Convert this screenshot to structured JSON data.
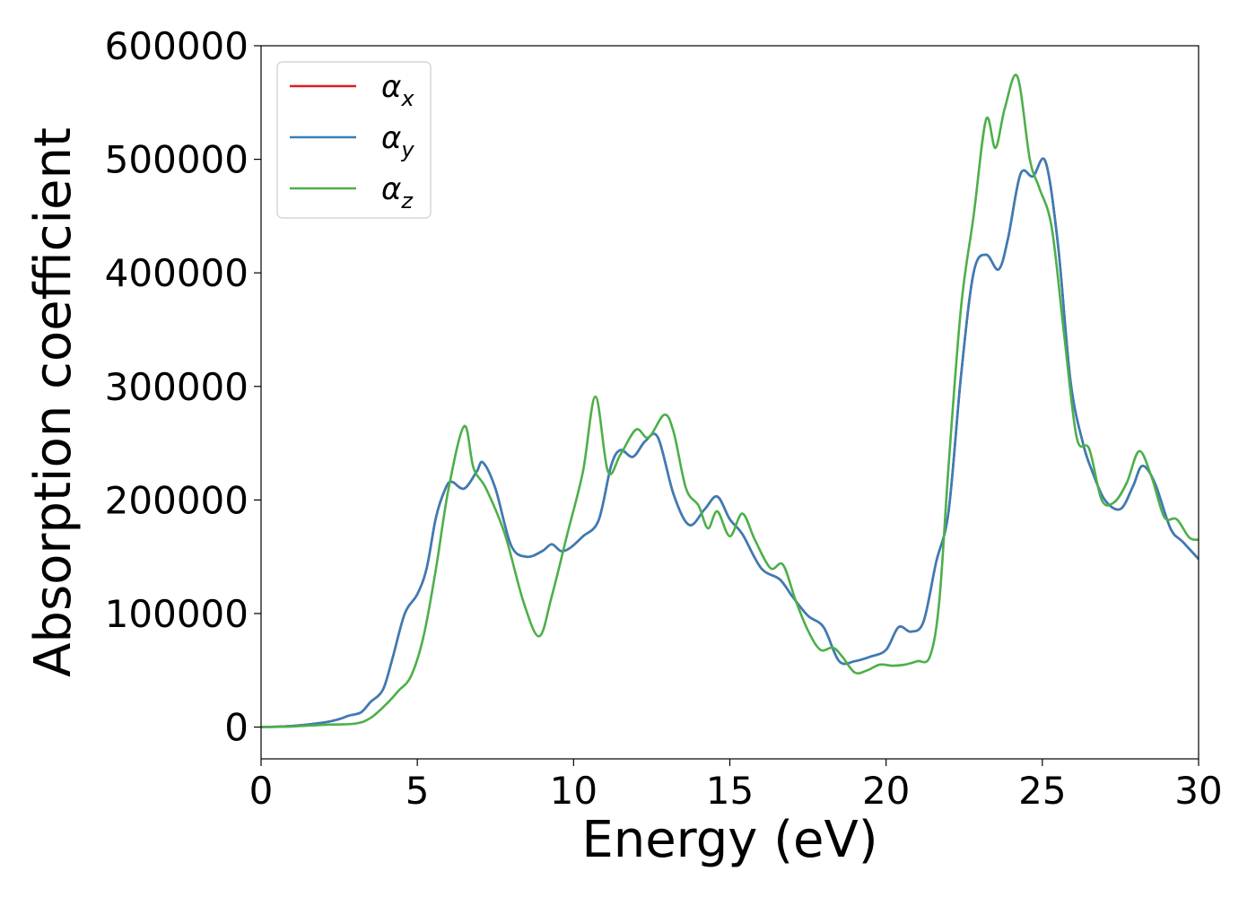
{
  "chart_data": {
    "type": "line",
    "title": "",
    "xlabel": "Energy (eV)",
    "ylabel": "Absorption coefficient",
    "xlim": [
      0,
      30
    ],
    "ylim": [
      -28000,
      600000
    ],
    "xticks": [
      0,
      5,
      10,
      15,
      20,
      25,
      30
    ],
    "yticks": [
      0,
      100000,
      200000,
      300000,
      400000,
      500000,
      600000
    ],
    "xtick_labels": [
      "0",
      "5",
      "10",
      "15",
      "20",
      "25",
      "30"
    ],
    "ytick_labels": [
      "0",
      "100000",
      "200000",
      "300000",
      "400000",
      "500000",
      "600000"
    ],
    "grid": false,
    "legend_position": "top-left",
    "series": [
      {
        "name": "αx",
        "symbol": "α",
        "subscript": "x",
        "color": "#e41a1c",
        "x": [
          0,
          1,
          2,
          2.5,
          2.8,
          3.2,
          3.5,
          3.9,
          4.2,
          4.6,
          5.0,
          5.3,
          5.6,
          5.9,
          6.1,
          6.5,
          6.9,
          7.1,
          7.5,
          8.0,
          8.5,
          9.0,
          9.3,
          9.6,
          9.9,
          10.3,
          10.8,
          11.2,
          11.5,
          11.9,
          12.3,
          12.7,
          13.2,
          13.7,
          14.2,
          14.6,
          15.0,
          15.4,
          16.0,
          16.6,
          17.0,
          17.5,
          18.0,
          18.5,
          19.0,
          19.5,
          20.0,
          20.4,
          20.8,
          21.2,
          21.6,
          22.0,
          22.4,
          22.8,
          23.2,
          23.6,
          23.9,
          24.3,
          24.7,
          25.1,
          25.5,
          25.9,
          26.3,
          26.6,
          27.0,
          27.5,
          27.9,
          28.2,
          28.6,
          29.1,
          29.5,
          30.0
        ],
        "y": [
          0,
          1000,
          4000,
          7000,
          10000,
          13000,
          22000,
          33000,
          60000,
          100000,
          117000,
          140000,
          185000,
          210000,
          216000,
          210000,
          225000,
          233000,
          210000,
          160000,
          150000,
          155000,
          161000,
          155000,
          158000,
          168000,
          182000,
          230000,
          244000,
          238000,
          252000,
          255000,
          205000,
          178000,
          192000,
          203000,
          183000,
          170000,
          140000,
          130000,
          115000,
          98000,
          88000,
          58000,
          58000,
          62000,
          68000,
          88000,
          84000,
          93000,
          145000,
          190000,
          310000,
          400000,
          416000,
          403000,
          430000,
          487000,
          485000,
          498000,
          425000,
          305000,
          250000,
          225000,
          200000,
          192000,
          212000,
          230000,
          215000,
          175000,
          163000,
          148000
        ]
      },
      {
        "name": "αy",
        "symbol": "α",
        "subscript": "y",
        "color": "#377eb8",
        "x": [
          0,
          1,
          2,
          2.5,
          2.8,
          3.2,
          3.5,
          3.9,
          4.2,
          4.6,
          5.0,
          5.3,
          5.6,
          5.9,
          6.1,
          6.5,
          6.9,
          7.1,
          7.5,
          8.0,
          8.5,
          9.0,
          9.3,
          9.6,
          9.9,
          10.3,
          10.8,
          11.2,
          11.5,
          11.9,
          12.3,
          12.7,
          13.2,
          13.7,
          14.2,
          14.6,
          15.0,
          15.4,
          16.0,
          16.6,
          17.0,
          17.5,
          18.0,
          18.5,
          19.0,
          19.5,
          20.0,
          20.4,
          20.8,
          21.2,
          21.6,
          22.0,
          22.4,
          22.8,
          23.2,
          23.6,
          23.9,
          24.3,
          24.7,
          25.1,
          25.5,
          25.9,
          26.3,
          26.6,
          27.0,
          27.5,
          27.9,
          28.2,
          28.6,
          29.1,
          29.5,
          30.0
        ],
        "y": [
          0,
          1000,
          4000,
          7000,
          10000,
          13000,
          22000,
          33000,
          60000,
          100000,
          117000,
          140000,
          185000,
          210000,
          216000,
          210000,
          225000,
          233000,
          210000,
          160000,
          150000,
          155000,
          161000,
          155000,
          158000,
          168000,
          182000,
          230000,
          244000,
          238000,
          252000,
          255000,
          205000,
          178000,
          192000,
          203000,
          183000,
          170000,
          140000,
          130000,
          115000,
          98000,
          88000,
          58000,
          58000,
          62000,
          68000,
          88000,
          84000,
          93000,
          145000,
          190000,
          310000,
          400000,
          416000,
          403000,
          430000,
          487000,
          485000,
          498000,
          425000,
          305000,
          250000,
          225000,
          200000,
          192000,
          212000,
          230000,
          215000,
          175000,
          163000,
          148000
        ]
      },
      {
        "name": "αz",
        "symbol": "α",
        "subscript": "z",
        "color": "#4daf4a",
        "x": [
          0,
          1,
          2,
          3,
          3.5,
          4.0,
          4.4,
          4.8,
          5.2,
          5.6,
          6.0,
          6.5,
          6.8,
          7.2,
          7.8,
          8.4,
          8.9,
          9.3,
          9.8,
          10.3,
          10.7,
          11.1,
          11.5,
          12.0,
          12.4,
          12.9,
          13.2,
          13.6,
          14.0,
          14.3,
          14.6,
          15.0,
          15.4,
          15.8,
          16.3,
          16.7,
          17.1,
          17.5,
          17.9,
          18.3,
          18.6,
          19.0,
          19.4,
          19.8,
          20.2,
          20.6,
          21.0,
          21.4,
          21.7,
          22.0,
          22.4,
          22.8,
          23.2,
          23.5,
          23.8,
          24.2,
          24.6,
          24.9,
          25.3,
          25.7,
          26.1,
          26.5,
          26.9,
          27.3,
          27.7,
          28.1,
          28.5,
          28.9,
          29.3,
          29.7,
          30.0
        ],
        "y": [
          0,
          500,
          2000,
          3000,
          8000,
          20000,
          32000,
          45000,
          80000,
          140000,
          210000,
          265000,
          228000,
          210000,
          170000,
          110000,
          80000,
          115000,
          170000,
          225000,
          291000,
          225000,
          240000,
          262000,
          255000,
          275000,
          260000,
          210000,
          195000,
          175000,
          190000,
          168000,
          188000,
          165000,
          140000,
          143000,
          112000,
          85000,
          68000,
          70000,
          62000,
          48000,
          50000,
          55000,
          54000,
          55000,
          58000,
          62000,
          110000,
          230000,
          370000,
          450000,
          535000,
          510000,
          545000,
          573000,
          500000,
          475000,
          440000,
          345000,
          255000,
          245000,
          200000,
          198000,
          215000,
          243000,
          220000,
          185000,
          183000,
          167000,
          165000
        ]
      }
    ]
  }
}
